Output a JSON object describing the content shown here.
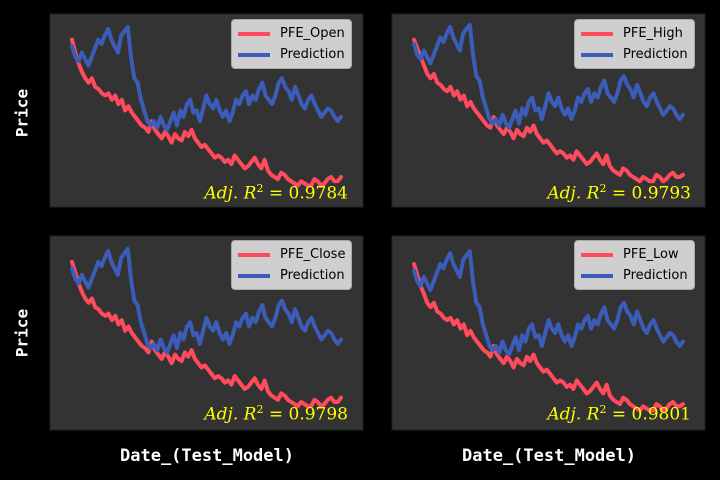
{
  "colors": {
    "figure_bg": "#000000",
    "axes_bg": "#333333",
    "actual": "#ff4b5c",
    "prediction": "#3b5cb8",
    "annotation": "#ffff00",
    "label": "#ffffff"
  },
  "labels": {
    "ylabel_top": "Price",
    "ylabel_bottom": "Price",
    "xlabel_left": "Date_(Test_Model)",
    "xlabel_right": "Date_(Test_Model)"
  },
  "chart_data": [
    {
      "type": "line",
      "panel": "top-left",
      "legend_position": "top-right",
      "ticks": "none",
      "grid": false,
      "annotation": {
        "prefix": "Adj.",
        "r": "R",
        "sup": "2",
        "eq": "=",
        "value": "0.9784"
      },
      "series": [
        {
          "name": "PFE_Open",
          "color": "#ff4b5c",
          "values": [
            88,
            82,
            77,
            73,
            70,
            68,
            70,
            66,
            65,
            63,
            62,
            63,
            60,
            62,
            58,
            60,
            55,
            57,
            54,
            52,
            50,
            48,
            47,
            45,
            50,
            46,
            44,
            42,
            45,
            43,
            40,
            44,
            42,
            41,
            45,
            43,
            46,
            42,
            40,
            38,
            39,
            37,
            35,
            33,
            34,
            33,
            31,
            32,
            30,
            34,
            32,
            30,
            28,
            29,
            31,
            33,
            30,
            28,
            32,
            27,
            25,
            24,
            23,
            26,
            25,
            23,
            22,
            21,
            20,
            22,
            21,
            20,
            20,
            23,
            22,
            20,
            21,
            23,
            24,
            22,
            22,
            24
          ]
        },
        {
          "name": "Prediction",
          "color": "#3b5cb8",
          "values": [
            85,
            80,
            78,
            82,
            79,
            76,
            80,
            84,
            88,
            86,
            90,
            93,
            88,
            85,
            82,
            90,
            92,
            94,
            80,
            70,
            68,
            60,
            55,
            50,
            48,
            50,
            47,
            52,
            48,
            46,
            50,
            54,
            48,
            55,
            52,
            58,
            60,
            54,
            55,
            50,
            56,
            62,
            58,
            56,
            60,
            55,
            52,
            55,
            50,
            54,
            60,
            58,
            62,
            64,
            58,
            62,
            60,
            65,
            68,
            62,
            60,
            58,
            62,
            68,
            70,
            66,
            64,
            60,
            66,
            62,
            58,
            56,
            60,
            62,
            58,
            55,
            52,
            54,
            56,
            55,
            52,
            50,
            52
          ]
        }
      ]
    },
    {
      "type": "line",
      "panel": "top-right",
      "legend_position": "top-right",
      "ticks": "none",
      "grid": false,
      "annotation": {
        "prefix": "Adj.",
        "r": "R",
        "sup": "2",
        "eq": "=",
        "value": "0.9793"
      },
      "series": [
        {
          "name": "PFE_High",
          "color": "#ff4b5c",
          "values": [
            88,
            84,
            80,
            76,
            72,
            70,
            72,
            68,
            67,
            65,
            64,
            66,
            62,
            64,
            60,
            62,
            57,
            59,
            56,
            54,
            52,
            50,
            48,
            47,
            52,
            48,
            46,
            44,
            47,
            45,
            42,
            46,
            44,
            43,
            47,
            45,
            48,
            44,
            42,
            40,
            41,
            39,
            37,
            35,
            36,
            35,
            33,
            34,
            32,
            36,
            34,
            32,
            30,
            31,
            33,
            35,
            32,
            30,
            34,
            29,
            27,
            26,
            25,
            28,
            27,
            25,
            24,
            23,
            22,
            24,
            23,
            22,
            22,
            25,
            24,
            22,
            23,
            25,
            26,
            24,
            24,
            25
          ]
        },
        {
          "name": "Prediction",
          "color": "#3b5cb8",
          "values": [
            86,
            81,
            79,
            83,
            80,
            77,
            81,
            85,
            89,
            87,
            91,
            94,
            89,
            86,
            83,
            91,
            93,
            95,
            81,
            71,
            69,
            61,
            56,
            51,
            49,
            51,
            48,
            53,
            49,
            47,
            51,
            55,
            49,
            56,
            53,
            59,
            61,
            55,
            56,
            51,
            57,
            63,
            59,
            57,
            61,
            56,
            53,
            56,
            51,
            55,
            61,
            59,
            63,
            65,
            59,
            63,
            61,
            66,
            69,
            63,
            61,
            59,
            63,
            69,
            71,
            67,
            65,
            61,
            67,
            63,
            59,
            57,
            61,
            63,
            59,
            56,
            53,
            55,
            57,
            56,
            53,
            51,
            53
          ]
        }
      ]
    },
    {
      "type": "line",
      "panel": "bottom-left",
      "legend_position": "top-right",
      "ticks": "none",
      "grid": false,
      "annotation": {
        "prefix": "Adj.",
        "r": "R",
        "sup": "2",
        "eq": "=",
        "value": "0.9798"
      },
      "series": [
        {
          "name": "PFE_Close",
          "color": "#ff4b5c",
          "values": [
            88,
            83,
            78,
            74,
            71,
            69,
            71,
            67,
            66,
            64,
            63,
            64,
            61,
            63,
            59,
            61,
            56,
            58,
            55,
            53,
            51,
            49,
            48,
            46,
            51,
            47,
            45,
            43,
            46,
            44,
            41,
            45,
            43,
            42,
            46,
            44,
            47,
            43,
            41,
            39,
            40,
            38,
            36,
            34,
            35,
            34,
            32,
            33,
            31,
            35,
            33,
            31,
            29,
            30,
            32,
            34,
            31,
            29,
            33,
            28,
            26,
            25,
            24,
            27,
            26,
            24,
            23,
            22,
            21,
            23,
            22,
            21,
            21,
            24,
            23,
            21,
            22,
            24,
            25,
            23,
            23,
            25
          ]
        },
        {
          "name": "Prediction",
          "color": "#3b5cb8",
          "values": [
            85,
            80,
            78,
            82,
            79,
            76,
            80,
            84,
            88,
            86,
            90,
            93,
            88,
            85,
            82,
            90,
            92,
            94,
            80,
            70,
            68,
            60,
            55,
            50,
            48,
            50,
            47,
            52,
            48,
            46,
            50,
            54,
            48,
            55,
            52,
            58,
            60,
            54,
            55,
            50,
            56,
            62,
            58,
            56,
            60,
            55,
            52,
            55,
            50,
            54,
            60,
            58,
            62,
            64,
            58,
            62,
            60,
            65,
            68,
            62,
            60,
            58,
            62,
            68,
            70,
            66,
            64,
            60,
            66,
            62,
            58,
            56,
            60,
            62,
            58,
            55,
            52,
            54,
            56,
            55,
            52,
            50,
            52
          ]
        }
      ]
    },
    {
      "type": "line",
      "panel": "bottom-right",
      "legend_position": "top-right",
      "ticks": "none",
      "grid": false,
      "annotation": {
        "prefix": "Adj.",
        "r": "R",
        "sup": "2",
        "eq": "=",
        "value": "0.9801"
      },
      "series": [
        {
          "name": "PFE_Low",
          "color": "#ff4b5c",
          "values": [
            87,
            82,
            77,
            73,
            69,
            67,
            69,
            65,
            64,
            62,
            61,
            62,
            59,
            61,
            57,
            59,
            54,
            56,
            53,
            51,
            49,
            47,
            46,
            44,
            49,
            45,
            43,
            41,
            44,
            42,
            39,
            43,
            41,
            40,
            44,
            42,
            45,
            41,
            39,
            37,
            38,
            36,
            34,
            32,
            33,
            32,
            30,
            31,
            29,
            33,
            31,
            29,
            27,
            28,
            30,
            32,
            29,
            27,
            31,
            26,
            24,
            23,
            22,
            25,
            24,
            22,
            21,
            20,
            19,
            21,
            20,
            19,
            19,
            22,
            21,
            19,
            20,
            22,
            23,
            21,
            21,
            22
          ]
        },
        {
          "name": "Prediction",
          "color": "#3b5cb8",
          "values": [
            84,
            79,
            77,
            81,
            78,
            75,
            79,
            83,
            87,
            85,
            89,
            92,
            87,
            84,
            81,
            89,
            91,
            93,
            79,
            69,
            67,
            59,
            54,
            49,
            47,
            49,
            46,
            51,
            47,
            45,
            49,
            53,
            47,
            54,
            51,
            57,
            59,
            53,
            54,
            49,
            55,
            61,
            57,
            55,
            59,
            54,
            51,
            54,
            49,
            53,
            59,
            57,
            61,
            63,
            57,
            61,
            59,
            64,
            67,
            61,
            59,
            57,
            61,
            67,
            69,
            65,
            63,
            59,
            65,
            61,
            57,
            55,
            59,
            61,
            57,
            54,
            51,
            53,
            55,
            54,
            51,
            49,
            51
          ]
        }
      ]
    }
  ]
}
